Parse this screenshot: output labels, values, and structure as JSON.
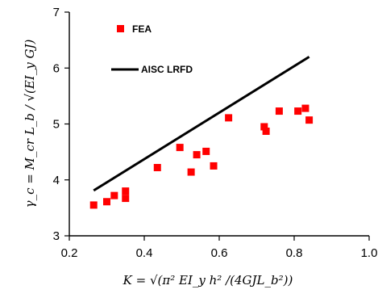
{
  "chart_data": {
    "type": "scatter",
    "xlabel": "K = √(π² EI_y h² /(4GJL_b²))",
    "ylabel": "γ_c = M_cr L_b / √(EI_y GJ)",
    "xlim": [
      0.2,
      1.0
    ],
    "ylim": [
      3,
      7
    ],
    "xticks": [
      "0.2",
      "0.4",
      "0.6",
      "0.8",
      "1.0"
    ],
    "yticks": [
      "3",
      "4",
      "5",
      "6",
      "7"
    ],
    "grid": false,
    "legend_placement": "top-left",
    "series": [
      {
        "name": "FEA",
        "kind": "scatter",
        "marker": "square",
        "color": "#ff0000",
        "points": [
          {
            "x": 0.265,
            "y": 3.55
          },
          {
            "x": 0.3,
            "y": 3.61
          },
          {
            "x": 0.32,
            "y": 3.72
          },
          {
            "x": 0.35,
            "y": 3.8
          },
          {
            "x": 0.35,
            "y": 3.67
          },
          {
            "x": 0.435,
            "y": 4.22
          },
          {
            "x": 0.495,
            "y": 4.58
          },
          {
            "x": 0.525,
            "y": 4.14
          },
          {
            "x": 0.54,
            "y": 4.45
          },
          {
            "x": 0.565,
            "y": 4.51
          },
          {
            "x": 0.585,
            "y": 4.25
          },
          {
            "x": 0.625,
            "y": 5.11
          },
          {
            "x": 0.72,
            "y": 4.95
          },
          {
            "x": 0.725,
            "y": 4.87
          },
          {
            "x": 0.76,
            "y": 5.23
          },
          {
            "x": 0.81,
            "y": 5.23
          },
          {
            "x": 0.83,
            "y": 5.28
          },
          {
            "x": 0.84,
            "y": 5.07
          }
        ]
      },
      {
        "name": "AISC LRFD",
        "kind": "line",
        "color": "#000000",
        "points": [
          {
            "x": 0.265,
            "y": 3.81
          },
          {
            "x": 0.84,
            "y": 6.2
          }
        ]
      }
    ]
  }
}
